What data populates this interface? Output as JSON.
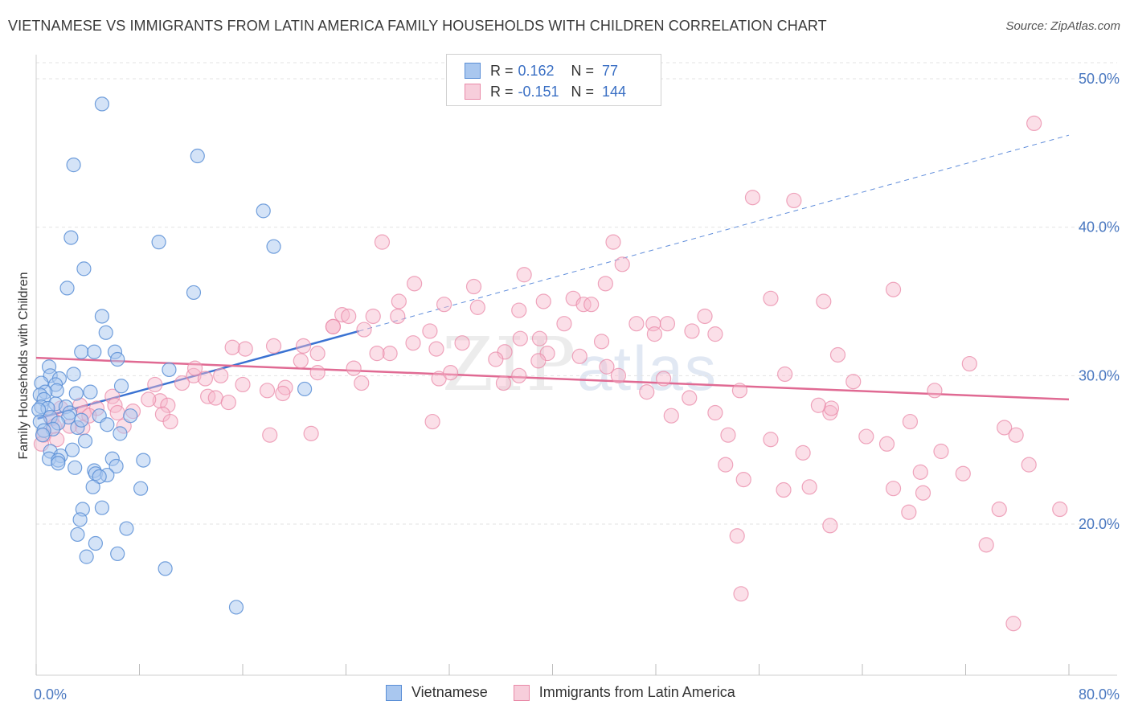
{
  "header": {
    "title": "VIETNAMESE VS IMMIGRANTS FROM LATIN AMERICA FAMILY HOUSEHOLDS WITH CHILDREN CORRELATION CHART",
    "source": "Source: ZipAtlas.com"
  },
  "watermark": {
    "zip": "ZIP",
    "atlas": "atlas"
  },
  "legend": {
    "rows": [
      {
        "r_label": "R =",
        "r_value": "0.162",
        "n_label": "N =",
        "n_value": "77"
      },
      {
        "r_label": "R =",
        "r_value": "-0.151",
        "n_label": "N =",
        "n_value": "144"
      }
    ]
  },
  "colors": {
    "blue_fill": "#a9c7ef",
    "blue_stroke": "#5b8fd6",
    "blue_line": "#3a72d2",
    "pink_fill": "#f7b9cc",
    "pink_stroke": "#e98aa8",
    "pink_line": "#e06a93",
    "grid": "#e3e3e3",
    "tick_text": "#4a78c0"
  },
  "chart_data": {
    "type": "scatter",
    "title": "VIETNAMESE VS IMMIGRANTS FROM LATIN AMERICA FAMILY HOUSEHOLDS WITH CHILDREN CORRELATION CHART",
    "xlabel": "",
    "ylabel": "Family Households with Children",
    "xlim": [
      0,
      80
    ],
    "ylim": [
      10,
      52
    ],
    "x_tick_labels": [
      "0.0%",
      "80.0%"
    ],
    "y_ticks": [
      20,
      30,
      40,
      50
    ],
    "y_tick_labels": [
      "20.0%",
      "30.0%",
      "40.0%",
      "50.0%"
    ],
    "grid": true,
    "legend_position": "bottom",
    "series": [
      {
        "name": "Vietnamese",
        "color": "#a9c7ef",
        "trend": {
          "x0": 0.1,
          "y0": 27.1,
          "x1": 25,
          "y1": 33.0,
          "dash_to_x": 80,
          "dash_to_y": 46.2
        },
        "points": [
          [
            5.1,
            48.3
          ],
          [
            2.9,
            44.2
          ],
          [
            12.5,
            44.8
          ],
          [
            17.6,
            41.1
          ],
          [
            2.7,
            39.3
          ],
          [
            9.5,
            39.0
          ],
          [
            18.4,
            38.7
          ],
          [
            3.7,
            37.2
          ],
          [
            2.4,
            35.9
          ],
          [
            12.2,
            35.6
          ],
          [
            5.1,
            34.0
          ],
          [
            5.4,
            32.9
          ],
          [
            3.5,
            31.6
          ],
          [
            4.5,
            31.6
          ],
          [
            6.1,
            31.6
          ],
          [
            6.3,
            31.1
          ],
          [
            1.0,
            30.6
          ],
          [
            10.3,
            30.4
          ],
          [
            2.9,
            30.1
          ],
          [
            1.1,
            30.0
          ],
          [
            1.8,
            29.8
          ],
          [
            1.5,
            29.4
          ],
          [
            0.4,
            29.5
          ],
          [
            6.6,
            29.3
          ],
          [
            1.6,
            29.0
          ],
          [
            0.7,
            28.9
          ],
          [
            4.2,
            28.9
          ],
          [
            3.1,
            28.8
          ],
          [
            20.8,
            29.1
          ],
          [
            0.3,
            28.7
          ],
          [
            0.6,
            28.4
          ],
          [
            1.5,
            28.1
          ],
          [
            2.3,
            27.9
          ],
          [
            0.4,
            27.9
          ],
          [
            0.9,
            27.8
          ],
          [
            0.2,
            27.7
          ],
          [
            2.6,
            27.5
          ],
          [
            4.9,
            27.3
          ],
          [
            1.1,
            27.2
          ],
          [
            2.5,
            27.2
          ],
          [
            0.3,
            26.9
          ],
          [
            1.7,
            26.8
          ],
          [
            3.2,
            26.5
          ],
          [
            1.3,
            26.4
          ],
          [
            5.5,
            26.7
          ],
          [
            0.6,
            26.3
          ],
          [
            6.5,
            26.1
          ],
          [
            3.8,
            25.6
          ],
          [
            2.8,
            25.0
          ],
          [
            1.1,
            24.9
          ],
          [
            1.9,
            24.6
          ],
          [
            5.9,
            24.4
          ],
          [
            1.0,
            24.4
          ],
          [
            1.7,
            24.3
          ],
          [
            8.3,
            24.3
          ],
          [
            1.7,
            24.1
          ],
          [
            6.2,
            23.9
          ],
          [
            3.0,
            23.8
          ],
          [
            4.5,
            23.6
          ],
          [
            4.6,
            23.4
          ],
          [
            5.5,
            23.3
          ],
          [
            4.9,
            23.2
          ],
          [
            4.4,
            22.5
          ],
          [
            8.1,
            22.4
          ],
          [
            5.1,
            21.1
          ],
          [
            3.6,
            21.0
          ],
          [
            3.4,
            20.3
          ],
          [
            7.0,
            19.7
          ],
          [
            3.2,
            19.3
          ],
          [
            4.6,
            18.7
          ],
          [
            6.3,
            18.0
          ],
          [
            3.9,
            17.8
          ],
          [
            10.0,
            17.0
          ],
          [
            15.5,
            14.4
          ],
          [
            3.5,
            27.0
          ],
          [
            7.3,
            27.3
          ],
          [
            0.5,
            26.0
          ]
        ]
      },
      {
        "name": "Immigrants from Latin America",
        "color": "#f7b9cc",
        "trend": {
          "x0": 0,
          "y0": 31.2,
          "x1": 80,
          "y1": 28.4
        },
        "points": [
          [
            77.3,
            47.0
          ],
          [
            55.5,
            42.0
          ],
          [
            58.7,
            41.8
          ],
          [
            26.8,
            39.0
          ],
          [
            44.7,
            39.0
          ],
          [
            45.4,
            37.5
          ],
          [
            37.8,
            36.8
          ],
          [
            29.3,
            36.2
          ],
          [
            44.1,
            36.2
          ],
          [
            33.9,
            36.0
          ],
          [
            66.4,
            35.8
          ],
          [
            56.9,
            35.2
          ],
          [
            61.0,
            35.0
          ],
          [
            28.1,
            35.0
          ],
          [
            31.6,
            34.8
          ],
          [
            34.2,
            34.6
          ],
          [
            39.3,
            35.0
          ],
          [
            41.6,
            35.2
          ],
          [
            42.4,
            34.8
          ],
          [
            43.0,
            34.8
          ],
          [
            37.4,
            34.4
          ],
          [
            26.1,
            34.0
          ],
          [
            28.0,
            34.0
          ],
          [
            23.7,
            34.1
          ],
          [
            24.2,
            34.0
          ],
          [
            51.8,
            34.0
          ],
          [
            46.5,
            33.5
          ],
          [
            47.8,
            33.5
          ],
          [
            48.9,
            33.5
          ],
          [
            40.9,
            33.5
          ],
          [
            23.0,
            33.3
          ],
          [
            30.5,
            33.0
          ],
          [
            23.0,
            33.3
          ],
          [
            25.4,
            33.1
          ],
          [
            47.9,
            32.8
          ],
          [
            52.6,
            32.8
          ],
          [
            37.5,
            32.5
          ],
          [
            39.0,
            32.5
          ],
          [
            29.2,
            32.2
          ],
          [
            33.0,
            32.2
          ],
          [
            50.8,
            33.0
          ],
          [
            43.8,
            32.3
          ],
          [
            20.7,
            32.0
          ],
          [
            18.4,
            32.0
          ],
          [
            16.2,
            31.8
          ],
          [
            15.2,
            31.9
          ],
          [
            31.0,
            31.8
          ],
          [
            36.3,
            31.6
          ],
          [
            39.6,
            31.5
          ],
          [
            62.1,
            31.4
          ],
          [
            21.8,
            31.5
          ],
          [
            27.4,
            31.5
          ],
          [
            38.9,
            31.0
          ],
          [
            35.6,
            31.1
          ],
          [
            72.3,
            30.8
          ],
          [
            44.2,
            30.6
          ],
          [
            24.6,
            30.5
          ],
          [
            21.8,
            30.2
          ],
          [
            14.3,
            30.0
          ],
          [
            37.4,
            30.0
          ],
          [
            31.2,
            29.8
          ],
          [
            12.2,
            30.0
          ],
          [
            13.1,
            29.8
          ],
          [
            26.4,
            31.5
          ],
          [
            20.5,
            31.0
          ],
          [
            11.3,
            29.5
          ],
          [
            9.2,
            29.4
          ],
          [
            16.0,
            29.4
          ],
          [
            19.3,
            29.2
          ],
          [
            17.9,
            29.0
          ],
          [
            36.2,
            29.5
          ],
          [
            47.3,
            28.9
          ],
          [
            54.5,
            29.0
          ],
          [
            63.3,
            29.6
          ],
          [
            19.1,
            28.8
          ],
          [
            13.3,
            28.6
          ],
          [
            13.9,
            28.5
          ],
          [
            14.9,
            28.2
          ],
          [
            9.6,
            28.3
          ],
          [
            8.7,
            28.4
          ],
          [
            5.9,
            28.6
          ],
          [
            6.1,
            28.0
          ],
          [
            10.2,
            28.0
          ],
          [
            3.4,
            28.0
          ],
          [
            1.9,
            27.8
          ],
          [
            3.7,
            27.5
          ],
          [
            4.7,
            27.8
          ],
          [
            6.3,
            27.5
          ],
          [
            4.1,
            27.3
          ],
          [
            9.8,
            27.4
          ],
          [
            7.5,
            27.6
          ],
          [
            52.6,
            27.5
          ],
          [
            61.5,
            27.5
          ],
          [
            49.2,
            27.3
          ],
          [
            61.6,
            27.8
          ],
          [
            60.6,
            28.0
          ],
          [
            1.2,
            27.1
          ],
          [
            1.4,
            26.6
          ],
          [
            2.6,
            26.6
          ],
          [
            3.6,
            26.5
          ],
          [
            6.8,
            26.6
          ],
          [
            10.4,
            26.9
          ],
          [
            0.6,
            26.0
          ],
          [
            0.4,
            25.4
          ],
          [
            1.6,
            25.7
          ],
          [
            30.7,
            26.9
          ],
          [
            18.1,
            26.0
          ],
          [
            21.3,
            26.1
          ],
          [
            67.7,
            26.9
          ],
          [
            75.0,
            26.5
          ],
          [
            75.9,
            26.0
          ],
          [
            53.6,
            26.0
          ],
          [
            56.9,
            25.7
          ],
          [
            64.3,
            25.9
          ],
          [
            65.9,
            25.4
          ],
          [
            59.4,
            24.8
          ],
          [
            70.1,
            24.9
          ],
          [
            76.9,
            24.0
          ],
          [
            53.4,
            24.0
          ],
          [
            68.5,
            23.5
          ],
          [
            71.8,
            23.4
          ],
          [
            54.8,
            23.0
          ],
          [
            59.9,
            22.5
          ],
          [
            57.9,
            22.3
          ],
          [
            66.4,
            22.4
          ],
          [
            68.7,
            22.1
          ],
          [
            74.6,
            21.0
          ],
          [
            79.3,
            21.0
          ],
          [
            67.6,
            20.8
          ],
          [
            61.5,
            19.9
          ],
          [
            54.3,
            19.2
          ],
          [
            73.6,
            18.6
          ],
          [
            54.6,
            15.3
          ],
          [
            75.7,
            13.3
          ],
          [
            12.3,
            30.5
          ],
          [
            25.2,
            29.5
          ],
          [
            32.1,
            30.2
          ],
          [
            42.1,
            31.3
          ],
          [
            45.1,
            30.0
          ],
          [
            48.6,
            29.8
          ],
          [
            58.0,
            30.1
          ],
          [
            69.6,
            29.0
          ],
          [
            50.6,
            28.5
          ]
        ]
      }
    ]
  },
  "bottom_legend": {
    "items": [
      {
        "label": "Vietnamese"
      },
      {
        "label": "Immigrants from Latin America"
      }
    ]
  }
}
